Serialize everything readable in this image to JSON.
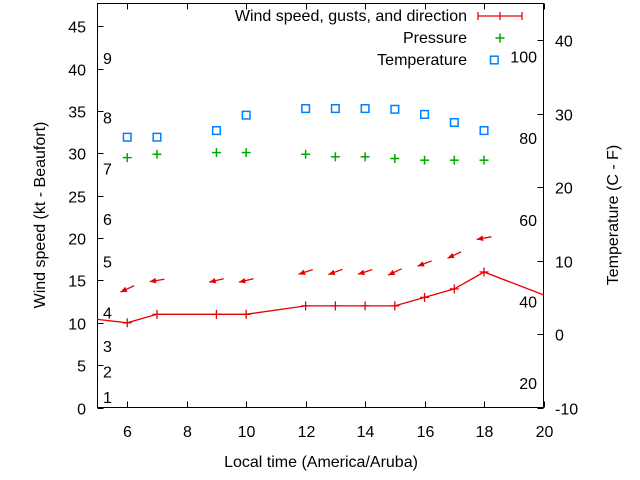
{
  "chart_data": {
    "type": "line",
    "title": "",
    "xlabel": "Local time (America/Aruba)",
    "ylabel": "Wind speed (kt - Beaufort)",
    "y2label": "Temperature (C - F)",
    "x_range": [
      5,
      20
    ],
    "x_ticks": [
      6,
      8,
      10,
      12,
      14,
      16,
      18,
      20
    ],
    "y1_range": [
      0,
      47.7
    ],
    "y1_ticks": [
      0,
      5,
      10,
      15,
      20,
      25,
      30,
      35,
      40,
      45
    ],
    "y2_range": [
      -10,
      45
    ],
    "y2_ticks": [
      -10,
      0,
      10,
      20,
      30,
      40
    ],
    "beaufort_inner_labels": [
      {
        "label": "1",
        "kt": 1
      },
      {
        "label": "2",
        "kt": 4
      },
      {
        "label": "3",
        "kt": 7
      },
      {
        "label": "4",
        "kt": 11
      },
      {
        "label": "5",
        "kt": 17
      },
      {
        "label": "6",
        "kt": 22
      },
      {
        "label": "7",
        "kt": 28
      },
      {
        "label": "8",
        "kt": 34
      },
      {
        "label": "9",
        "kt": 41
      }
    ],
    "fahrenheit_inner_labels": [
      20,
      40,
      60,
      80,
      100
    ],
    "legend": [
      {
        "label": "Wind speed, gusts, and direction",
        "marker": "errorbar-plus",
        "series": "wind"
      },
      {
        "label": "Pressure",
        "marker": "plus",
        "series": "pressure"
      },
      {
        "label": "Temperature",
        "marker": "open-square",
        "series": "temperature"
      }
    ],
    "series": {
      "wind_speed_kt": {
        "x": [
          6,
          7,
          9,
          10,
          12,
          13,
          14,
          15,
          16,
          17,
          18
        ],
        "y": [
          10,
          11,
          11,
          11,
          12,
          12,
          12,
          12,
          13,
          14,
          16
        ]
      },
      "wind_line_edge_points": [
        {
          "x": 5,
          "y": 10.4
        },
        {
          "x": 20,
          "y": 13.3
        }
      ],
      "wind_gusts_kt": {
        "x": [
          6,
          7,
          9,
          10,
          12,
          13,
          14,
          15,
          16,
          17,
          18
        ],
        "y": [
          14,
          15,
          15,
          15,
          16,
          16,
          16,
          16,
          17,
          18,
          20
        ],
        "arrow_angles_deg": [
          155,
          171,
          167,
          167,
          162,
          160,
          162,
          155,
          160,
          155,
          170
        ]
      },
      "pressure_inhg": {
        "x": [
          6,
          7,
          9,
          10,
          12,
          13,
          14,
          15,
          16,
          17,
          18
        ],
        "y": [
          29.5,
          29.9,
          30.1,
          30.1,
          29.9,
          29.6,
          29.6,
          29.4,
          29.2,
          29.2,
          29.2
        ]
      },
      "temperature_c": {
        "x": [
          6,
          7,
          9,
          10,
          12,
          13,
          14,
          15,
          16,
          17,
          18
        ],
        "y": [
          26.8,
          26.8,
          27.7,
          29.8,
          30.7,
          30.7,
          30.7,
          30.6,
          29.9,
          28.8,
          27.7
        ]
      }
    },
    "colors": {
      "wind": "#e60000",
      "pressure": "#00a800",
      "temperature": "#0080ff",
      "axis": "#000000",
      "text": "#000000",
      "background": "#ffffff"
    }
  }
}
